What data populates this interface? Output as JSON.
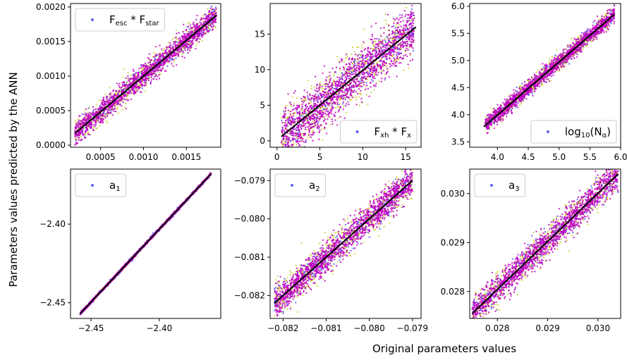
{
  "figure": {
    "xlabel": "Original parameters values",
    "ylabel": "Parameters values predicted by the ANN"
  },
  "colors": {
    "series_blue": "#3b3bf0",
    "series_yellow": "#c8c81e",
    "series_magenta": "#c000c0",
    "fit_line": "#000000"
  },
  "chart_data": [
    {
      "type": "scatter",
      "id": "p1",
      "legend": {
        "label": "F",
        "sub1": "esc",
        "mid": " * F",
        "sub2": "star",
        "loc": "upper-left"
      },
      "xlim": [
        0.00015,
        0.0019
      ],
      "ylim": [
        -3e-05,
        0.00205
      ],
      "xticks": [
        0.0005,
        0.001,
        0.0015
      ],
      "xticklabels": [
        "0.0005",
        "0.0010",
        "0.0015"
      ],
      "yticks": [
        0.0,
        0.0005,
        0.001,
        0.0015,
        0.002
      ],
      "yticklabels": [
        "0.0000",
        "0.0005",
        "0.0010",
        "0.0015",
        "0.0020"
      ],
      "fit_line": {
        "x": [
          0.0002,
          0.00185
        ],
        "y": [
          0.00017,
          0.00188
        ]
      },
      "series": [
        {
          "color": "blue",
          "range": [
            0.0002,
            0.00185
          ],
          "spread": 7e-05
        },
        {
          "color": "yellow",
          "range": [
            0.0002,
            0.00185
          ],
          "spread": 9e-05
        },
        {
          "color": "magenta",
          "range": [
            0.0002,
            0.00185
          ],
          "spread": 8e-05
        }
      ]
    },
    {
      "type": "scatter",
      "id": "p2",
      "legend": {
        "label": "F",
        "sub1": "xh",
        "mid": " * F",
        "sub2": "x",
        "loc": "lower-right"
      },
      "xlim": [
        -0.8,
        16.8
      ],
      "ylim": [
        -0.9,
        19.3
      ],
      "xticks": [
        0,
        5,
        10,
        15
      ],
      "xticklabels": [
        "0",
        "5",
        "10",
        "15"
      ],
      "yticks": [
        0,
        5,
        10,
        15
      ],
      "yticklabels": [
        "0",
        "5",
        "10",
        "15"
      ],
      "fit_line": {
        "x": [
          0.5,
          16.2
        ],
        "y": [
          0.6,
          16.0
        ]
      },
      "series": [
        {
          "color": "blue",
          "range": [
            0.5,
            16.0
          ],
          "spread": 1.4
        },
        {
          "color": "yellow",
          "range": [
            0.5,
            16.0
          ],
          "spread": 2.0
        },
        {
          "color": "magenta",
          "range": [
            0.5,
            16.0
          ],
          "spread": 1.7
        }
      ]
    },
    {
      "type": "scatter",
      "id": "p3",
      "legend": {
        "label": "log",
        "sub1": "10",
        "mid": "(N",
        "sub2": "α",
        "end": ")",
        "loc": "lower-right"
      },
      "xlim": [
        3.55,
        6.0
      ],
      "ylim": [
        3.4,
        6.05
      ],
      "xticks": [
        4.0,
        4.5,
        5.0,
        5.5,
        6.0
      ],
      "xticklabels": [
        "4.0",
        "4.5",
        "5.0",
        "5.5",
        "6.0"
      ],
      "yticks": [
        3.5,
        4.0,
        4.5,
        5.0,
        5.5,
        6.0
      ],
      "yticklabels": [
        "3.5",
        "4.0",
        "4.5",
        "5.0",
        "5.5",
        "6.0"
      ],
      "fit_line": {
        "x": [
          3.78,
          5.9
        ],
        "y": [
          3.78,
          5.85
        ]
      },
      "series": [
        {
          "color": "blue",
          "range": [
            3.8,
            5.9
          ],
          "spread": 0.07
        },
        {
          "color": "yellow",
          "range": [
            3.8,
            5.9
          ],
          "spread": 0.08
        },
        {
          "color": "magenta",
          "range": [
            3.8,
            5.9
          ],
          "spread": 0.07
        }
      ]
    },
    {
      "type": "scatter",
      "id": "p4",
      "legend": {
        "label": "a",
        "sub1": "1",
        "loc": "upper-left"
      },
      "xlim": [
        -2.465,
        -2.355
      ],
      "ylim": [
        -2.46,
        -2.365
      ],
      "xticks": [
        -2.45,
        -2.4
      ],
      "xticklabels": [
        "−2.45",
        "−2.40"
      ],
      "yticks": [
        -2.45,
        -2.4
      ],
      "yticklabels": [
        "−2.45",
        "−2.40"
      ],
      "fit_line": {
        "x": [
          -2.458,
          -2.362
        ],
        "y": [
          -2.457,
          -2.368
        ]
      },
      "series": [
        {
          "color": "blue",
          "range": [
            -2.458,
            -2.362
          ],
          "spread": 0.0006
        },
        {
          "color": "yellow",
          "range": [
            -2.458,
            -2.362
          ],
          "spread": 0.0004
        },
        {
          "color": "magenta",
          "range": [
            -2.458,
            -2.362
          ],
          "spread": 0.0004
        }
      ]
    },
    {
      "type": "scatter",
      "id": "p5",
      "legend": {
        "label": "a",
        "sub1": "2",
        "loc": "upper-left"
      },
      "xlim": [
        -0.0823,
        -0.0788
      ],
      "ylim": [
        -0.0826,
        -0.0787
      ],
      "xticks": [
        -0.082,
        -0.081,
        -0.08,
        -0.079
      ],
      "xticklabels": [
        "−0.082",
        "−0.081",
        "−0.080",
        "−0.079"
      ],
      "yticks": [
        -0.082,
        -0.081,
        -0.08,
        -0.079
      ],
      "yticklabels": [
        "−0.082",
        "−0.081",
        "−0.080",
        "−0.079"
      ],
      "fit_line": {
        "x": [
          -0.0822,
          -0.079
        ],
        "y": [
          -0.0822,
          -0.079
        ]
      },
      "series": [
        {
          "color": "blue",
          "range": [
            -0.0822,
            -0.079
          ],
          "spread": 0.00018
        },
        {
          "color": "yellow",
          "range": [
            -0.0822,
            -0.079
          ],
          "spread": 0.00025
        },
        {
          "color": "magenta",
          "range": [
            -0.0822,
            -0.079
          ],
          "spread": 0.0002
        }
      ]
    },
    {
      "type": "scatter",
      "id": "p6",
      "legend": {
        "label": "a",
        "sub1": "3",
        "loc": "upper-left"
      },
      "xlim": [
        0.02745,
        0.03045
      ],
      "ylim": [
        0.02745,
        0.0305
      ],
      "xticks": [
        0.028,
        0.029,
        0.03
      ],
      "xticklabels": [
        "0.028",
        "0.029",
        "0.030"
      ],
      "yticks": [
        0.028,
        0.029,
        0.03
      ],
      "yticklabels": [
        "0.028",
        "0.029",
        "0.030"
      ],
      "fit_line": {
        "x": [
          0.0275,
          0.0304
        ],
        "y": [
          0.02755,
          0.0304
        ]
      },
      "series": [
        {
          "color": "blue",
          "range": [
            0.0275,
            0.0304
          ],
          "spread": 0.00014
        },
        {
          "color": "yellow",
          "range": [
            0.0275,
            0.0304
          ],
          "spread": 0.00018
        },
        {
          "color": "magenta",
          "range": [
            0.0275,
            0.0304
          ],
          "spread": 0.00015
        }
      ]
    }
  ]
}
